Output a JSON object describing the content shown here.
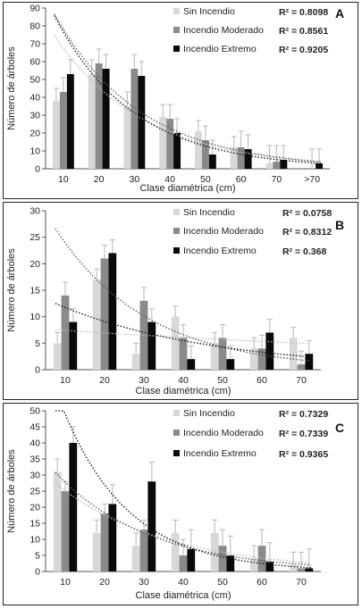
{
  "colors": {
    "Sin Incendio": "#d8d8d8",
    "Incendio Moderado": "#8a8a8a",
    "Incendio Extremo": "#0a0a0a",
    "error_bar": "#bdbdbd"
  },
  "chart_data": [
    {
      "type": "bar",
      "panel_label": "A",
      "xlabel": "Clase diamétrica (cm)",
      "ylabel": "Número de árboles",
      "categories": [
        "10",
        "20",
        "30",
        "40",
        "50",
        "60",
        "70",
        ">70"
      ],
      "ylim": [
        0,
        90
      ],
      "yticks": [
        "0",
        "10",
        "20",
        "30",
        "40",
        "50",
        "60",
        "70",
        "80",
        "90"
      ],
      "ytick_values": [
        0,
        10,
        20,
        30,
        40,
        50,
        60,
        70,
        80,
        90
      ],
      "grid": false,
      "legend_position": "top-right",
      "series": [
        {
          "name": "Sin Incendio",
          "r2": "R² = 0.8098",
          "values": [
            38,
            53,
            35,
            29,
            21,
            12,
            3,
            0
          ],
          "errors": [
            7,
            8,
            8,
            7,
            6,
            6,
            10,
            0
          ]
        },
        {
          "name": "Incendio Moderado",
          "r2": "R² = 0.8561",
          "values": [
            43,
            59,
            56,
            28,
            16,
            12,
            4,
            0
          ],
          "errors": [
            8,
            8,
            8,
            8,
            8,
            9,
            9,
            11
          ]
        },
        {
          "name": "Incendio Extremo",
          "r2": "R² = 0.9205",
          "values": [
            53,
            56,
            52,
            20,
            8,
            11,
            5,
            3
          ],
          "errors": [
            8,
            8,
            8,
            8,
            8,
            8,
            8,
            8
          ]
        }
      ]
    },
    {
      "type": "bar",
      "panel_label": "B",
      "xlabel": "Clase diamétrica (cm)",
      "ylabel": "Número de árboles",
      "categories": [
        "10",
        "20",
        "30",
        "40",
        "50",
        "60",
        "70"
      ],
      "ylim": [
        0,
        30
      ],
      "yticks": [
        "0",
        "5",
        "10",
        "15",
        "20",
        "25",
        "30"
      ],
      "ytick_values": [
        0,
        5,
        10,
        15,
        20,
        25,
        30
      ],
      "grid": false,
      "legend_position": "top-right",
      "series": [
        {
          "name": "Sin Incendio",
          "r2": "R² = 0.0758",
          "values": [
            5,
            17,
            3,
            10,
            5,
            4,
            6
          ],
          "errors": [
            2,
            2,
            2,
            2,
            2,
            2,
            2
          ]
        },
        {
          "name": "Incendio Moderado",
          "r2": "R² = 0.8312",
          "values": [
            14,
            21,
            13,
            6,
            6,
            4,
            1
          ],
          "errors": [
            2.5,
            2.5,
            2.5,
            2.5,
            2.5,
            2.5,
            2.5
          ]
        },
        {
          "name": "Incendio Extremo",
          "r2": "R² = 0.368",
          "values": [
            9,
            22,
            9,
            2,
            2,
            7,
            3
          ],
          "errors": [
            2.5,
            2.5,
            2.5,
            2.5,
            2.5,
            2.5,
            2.5
          ]
        }
      ]
    },
    {
      "type": "bar",
      "panel_label": "C",
      "xlabel": "Clase diamétrica (cm)",
      "ylabel": "Número de árboles",
      "categories": [
        "10",
        "20",
        "30",
        "40",
        "50",
        "60",
        "70"
      ],
      "ylim": [
        0,
        50
      ],
      "yticks": [
        "0",
        "5",
        "10",
        "15",
        "20",
        "25",
        "30",
        "35",
        "40",
        "45",
        "50"
      ],
      "ytick_values": [
        0,
        5,
        10,
        15,
        20,
        25,
        30,
        35,
        40,
        45,
        50
      ],
      "grid": false,
      "legend_position": "top-right",
      "series": [
        {
          "name": "Sin Incendio",
          "r2": "R² = 0.7329",
          "values": [
            31,
            12,
            8,
            12,
            12,
            4,
            2
          ],
          "errors": [
            4,
            4,
            4,
            4,
            4,
            4,
            4
          ]
        },
        {
          "name": "Incendio Moderado",
          "r2": "R² = 0.7339",
          "values": [
            25,
            18,
            13,
            5,
            8,
            8,
            1
          ],
          "errors": [
            3,
            3,
            3,
            5,
            5,
            5,
            5
          ]
        },
        {
          "name": "Incendio Extremo",
          "r2": "R² = 0.9365",
          "values": [
            40,
            21,
            28,
            7,
            5,
            3,
            1
          ],
          "errors": [
            5,
            6,
            6,
            6,
            6,
            6,
            6
          ]
        }
      ]
    }
  ]
}
